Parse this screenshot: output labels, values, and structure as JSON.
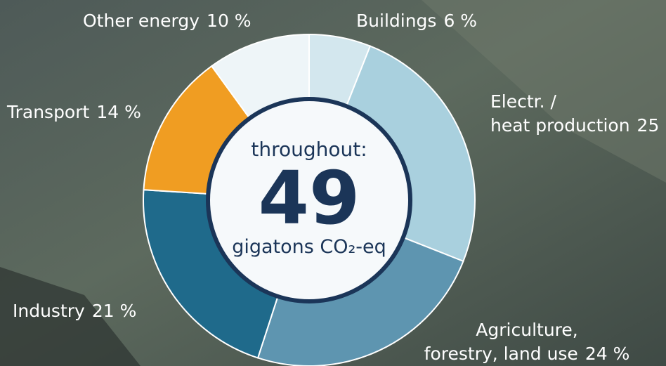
{
  "chart_data": {
    "type": "pie",
    "categories": [
      [
        "Buildings"
      ],
      [
        "Electr. /",
        "heat production"
      ],
      [
        "Agriculture,",
        "forestry, land use"
      ],
      [
        "Industry"
      ],
      [
        "Transport"
      ],
      [
        "Other energy"
      ]
    ],
    "values": [
      6,
      25,
      24,
      21,
      14,
      10
    ],
    "value_labels": [
      "6 %",
      "25",
      "24 %",
      "21 %",
      "14 %",
      "10 %"
    ],
    "colors": [
      "#d3e7ee",
      "#a9d0de",
      "#5e95b0",
      "#1f6a8b",
      "#f09d22",
      "#eef5f8"
    ],
    "center_top": "throughout:",
    "center_value": 49,
    "center_bottom": "gigatons CO₂-eq"
  }
}
